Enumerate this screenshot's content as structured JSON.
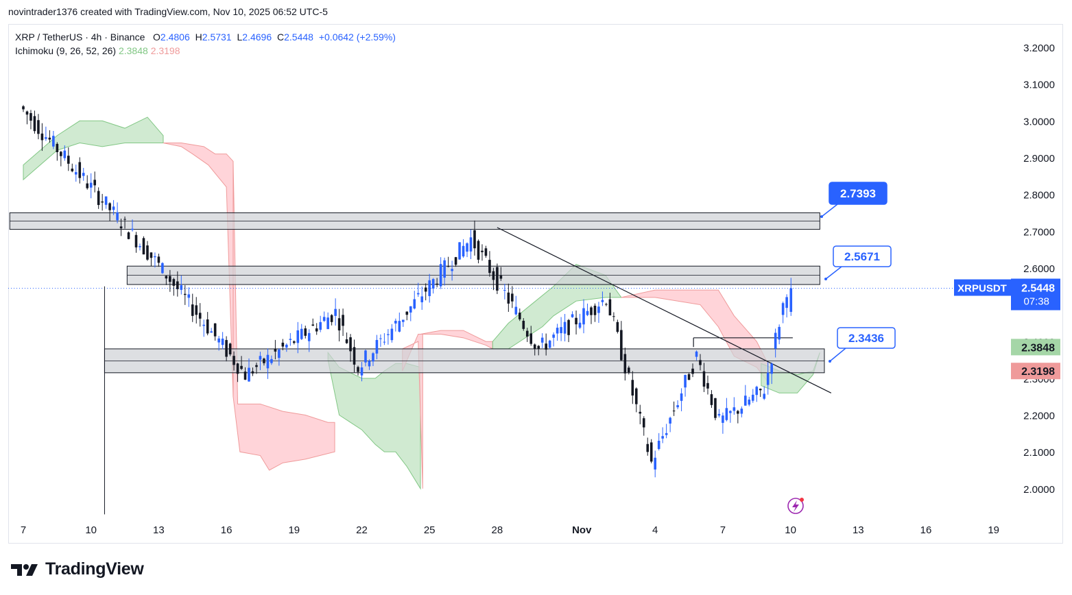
{
  "header": {
    "text": "novintrader1376 created with TradingView.com, Nov 10, 2025 06:52 UTC-5"
  },
  "legend": {
    "symbol": "XRP / TetherUS · 4h · Binance",
    "open_label": "O",
    "open": "2.4806",
    "high_label": "H",
    "high": "2.5731",
    "low_label": "L",
    "low": "2.4696",
    "close_label": "C",
    "close": "2.5448",
    "change": "+0.0642 (+2.59%)",
    "indicator": "Ichimoku (9, 26, 52, 26)",
    "span_a": "2.3848",
    "span_b": "2.3198"
  },
  "price_axis": {
    "ticks": [
      "3.2000",
      "3.1000",
      "3.0000",
      "2.9000",
      "2.8000",
      "2.7000",
      "2.6000",
      "2.5000",
      "2.4000",
      "2.3000",
      "2.2000",
      "2.1000",
      "2.0000"
    ],
    "symbol_badge": "XRPUSDT",
    "last_price": "2.5448",
    "countdown": "07:38",
    "span_a_badge": "2.3848",
    "span_b_badge": "2.3198"
  },
  "time_axis": {
    "labels": [
      "7",
      "10",
      "13",
      "16",
      "19",
      "22",
      "25",
      "28",
      "Nov",
      "4",
      "7",
      "10",
      "13",
      "16",
      "19"
    ]
  },
  "callouts": [
    {
      "text": "2.7393",
      "style": "filled"
    },
    {
      "text": "2.5671",
      "style": "outline"
    },
    {
      "text": "2.3436",
      "style": "outline"
    }
  ],
  "brand": {
    "name": "TradingView"
  },
  "colors": {
    "bull": "#2962ff",
    "bear": "#131722",
    "cloud_green": "#c8e6c9",
    "cloud_red": "#ffcdd2",
    "span_a_line": "#81c784",
    "span_b_line": "#ef9a9a",
    "accent": "#2962ff"
  },
  "chart_data": {
    "type": "candlestick",
    "symbol": "XRP / TetherUS",
    "interval": "4h",
    "exchange": "Binance",
    "y_range": [
      1.93,
      3.26
    ],
    "x_axis": "date (Oct 7 – Nov 19, 2025)",
    "zones": [
      {
        "low": 2.705,
        "high": 2.75
      },
      {
        "low": 2.555,
        "high": 2.605
      },
      {
        "low": 2.315,
        "high": 2.38
      }
    ],
    "trendline": {
      "from_date": "Oct 28",
      "from_price": 2.71,
      "to_date": "Nov 11",
      "to_price": 2.26
    },
    "callout_levels": [
      2.7393,
      2.5671,
      2.3436
    ],
    "key_points": [
      {
        "date": "Oct 7",
        "price": 3.04
      },
      {
        "date": "Oct 10",
        "price": 2.83
      },
      {
        "date": "Oct 10",
        "price": 1.93,
        "note": "low wick"
      },
      {
        "date": "Oct 13",
        "price": 2.62
      },
      {
        "date": "Oct 17",
        "price": 2.31
      },
      {
        "date": "Oct 21",
        "price": 2.48
      },
      {
        "date": "Oct 22",
        "price": 2.33
      },
      {
        "date": "Oct 27",
        "price": 2.68
      },
      {
        "date": "Oct 30",
        "price": 2.38
      },
      {
        "date": "Nov 2",
        "price": 2.52
      },
      {
        "date": "Nov 4",
        "price": 2.07
      },
      {
        "date": "Nov 6",
        "price": 2.36
      },
      {
        "date": "Nov 7",
        "price": 2.18
      },
      {
        "date": "Nov 9",
        "price": 2.27
      },
      {
        "date": "Nov 10",
        "price": 2.5448
      }
    ],
    "last": {
      "open": 2.4806,
      "high": 2.5731,
      "low": 2.4696,
      "close": 2.5448,
      "change": 0.0642,
      "change_pct": 2.59
    },
    "ichimoku": {
      "params": [
        9,
        26,
        52,
        26
      ],
      "span_a": 2.3848,
      "span_b": 2.3198
    }
  }
}
